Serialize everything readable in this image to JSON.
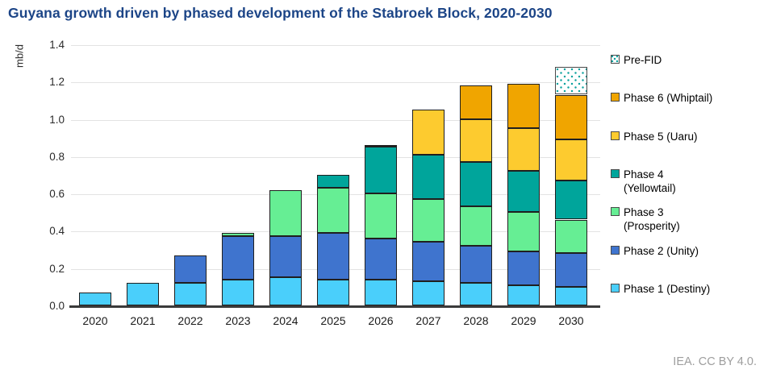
{
  "title": "Guyana growth driven by phased development of the Stabroek Block, 2020-2030",
  "footer": "IEA. CC BY 4.0.",
  "chart_data": {
    "type": "bar",
    "stacked": true,
    "title": "Guyana growth driven by phased development of the Stabroek Block, 2020-2030",
    "xlabel": "",
    "ylabel": "mb/d",
    "ylim": [
      0,
      1.4
    ],
    "ytick_step": 0.2,
    "grid": true,
    "legend_position": "right",
    "categories": [
      "2020",
      "2021",
      "2022",
      "2023",
      "2024",
      "2025",
      "2026",
      "2027",
      "2028",
      "2029",
      "2030"
    ],
    "series": [
      {
        "name": "Phase 1 (Destiny)",
        "legend_lines": [
          "Phase 1 (Destiny)"
        ],
        "color": "#4ACFFB",
        "pattern": "solid",
        "values": [
          0.07,
          0.12,
          0.12,
          0.14,
          0.15,
          0.14,
          0.14,
          0.13,
          0.12,
          0.11,
          0.1
        ]
      },
      {
        "name": "Phase 2 (Unity)",
        "legend_lines": [
          "Phase 2 (Unity)"
        ],
        "color": "#3F74CE",
        "pattern": "solid",
        "values": [
          0,
          0,
          0.15,
          0.23,
          0.22,
          0.25,
          0.22,
          0.21,
          0.2,
          0.18,
          0.18
        ]
      },
      {
        "name": "Phase 3 (Prosperity)",
        "legend_lines": [
          "Phase 3",
          "(Prosperity)"
        ],
        "color": "#66EE94",
        "pattern": "solid",
        "values": [
          0,
          0,
          0,
          0.02,
          0.25,
          0.24,
          0.24,
          0.23,
          0.21,
          0.21,
          0.18
        ]
      },
      {
        "name": "Phase 4 (Yellowtail)",
        "legend_lines": [
          "Phase 4",
          "(Yellowtail)"
        ],
        "color": "#00A59B",
        "pattern": "solid",
        "values": [
          0,
          0,
          0,
          0,
          0,
          0.07,
          0.25,
          0.24,
          0.24,
          0.22,
          0.21
        ]
      },
      {
        "name": "Phase 5 (Uaru)",
        "legend_lines": [
          "Phase 5 (Uaru)"
        ],
        "color": "#FDCB2F",
        "pattern": "solid",
        "values": [
          0,
          0,
          0,
          0,
          0,
          0,
          0.01,
          0.24,
          0.23,
          0.23,
          0.22
        ]
      },
      {
        "name": "Phase 6 (Whiptail)",
        "legend_lines": [
          "Phase 6 (Whiptail)"
        ],
        "color": "#F0A500",
        "pattern": "solid",
        "values": [
          0,
          0,
          0,
          0,
          0,
          0,
          0,
          0,
          0.18,
          0.24,
          0.24
        ]
      },
      {
        "name": "Pre-FID",
        "legend_lines": [
          "Pre-FID"
        ],
        "color": "#0FA3A0",
        "pattern": "dotted",
        "values": [
          0,
          0,
          0,
          0,
          0,
          0,
          0,
          0,
          0,
          0,
          0.15
        ]
      }
    ],
    "totals": [
      0.07,
      0.12,
      0.27,
      0.39,
      0.62,
      0.7,
      0.86,
      1.05,
      1.18,
      1.19,
      1.28
    ]
  },
  "colors": {
    "title": "#1C4587",
    "axis": "#3a3a3a",
    "gridline": "#e3e3e3",
    "segment_border": "#1f1f1f",
    "footer_text": "#9e9e9e"
  }
}
